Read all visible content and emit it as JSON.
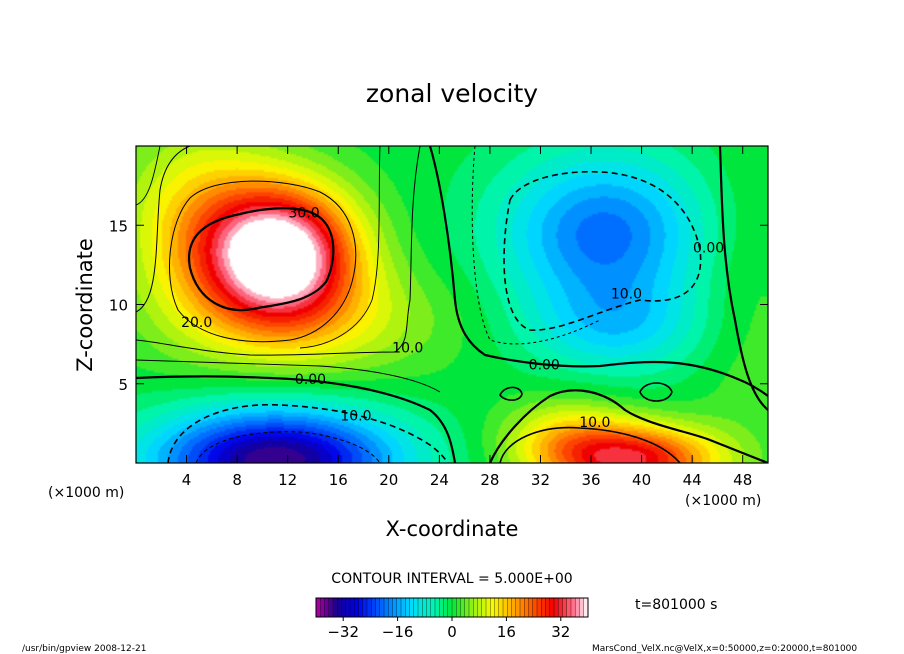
{
  "chart_data": {
    "type": "heatmap",
    "subtype": "filled-contour",
    "title": "zonal velocity",
    "xlabel": "X-coordinate",
    "ylabel": "Z-coordinate",
    "x_unit_label": "(×1000 m)",
    "z_unit_label": "(×1000 m)",
    "xlim": [
      0,
      50
    ],
    "zlim": [
      0,
      20
    ],
    "x_ticks": [
      4,
      8,
      12,
      16,
      20,
      24,
      28,
      32,
      36,
      40,
      44,
      48
    ],
    "z_ticks": [
      5,
      10,
      15
    ],
    "contour_interval_text": "CONTOUR INTERVAL = 5.000E+00",
    "time_text": "t=801000 s",
    "colorbar": {
      "range": [
        -40,
        40
      ],
      "ticks": [
        -32,
        -16,
        0,
        16,
        32
      ]
    },
    "contour_labels": [
      {
        "text": "30.0",
        "x": 13.3,
        "z": 15.8
      },
      {
        "text": "20.0",
        "x": 4.8,
        "z": 8.9
      },
      {
        "text": "10.0",
        "x": 21.5,
        "z": 7.3
      },
      {
        "text": "0.00",
        "x": 13.8,
        "z": 5.3
      },
      {
        "text": "10.0",
        "x": 17.4,
        "z": 3.0
      },
      {
        "text": "0.00",
        "x": 32.3,
        "z": 6.2
      },
      {
        "text": "10.0",
        "x": 38.8,
        "z": 10.7
      },
      {
        "text": "0.00",
        "x": 45.3,
        "z": 13.6
      },
      {
        "text": "10.0",
        "x": 36.3,
        "z": 2.6
      }
    ],
    "field_features": [
      {
        "name": "positive jet core",
        "x": 11,
        "z": 13,
        "peak": 40
      },
      {
        "name": "negative surface lobe",
        "x": 10,
        "z": 0.5,
        "peak": -34
      },
      {
        "name": "negative upper lobe",
        "x": 37,
        "z": 14.5,
        "peak": -18
      },
      {
        "name": "positive surface lobe",
        "x": 40,
        "z": 0.5,
        "peak": 30
      }
    ]
  },
  "footer": {
    "left": "/usr/bin/gpview   2008-12-21",
    "right": "MarsCond_VelX.nc@VelX,x=0:50000,z=0:20000,t=801000"
  }
}
